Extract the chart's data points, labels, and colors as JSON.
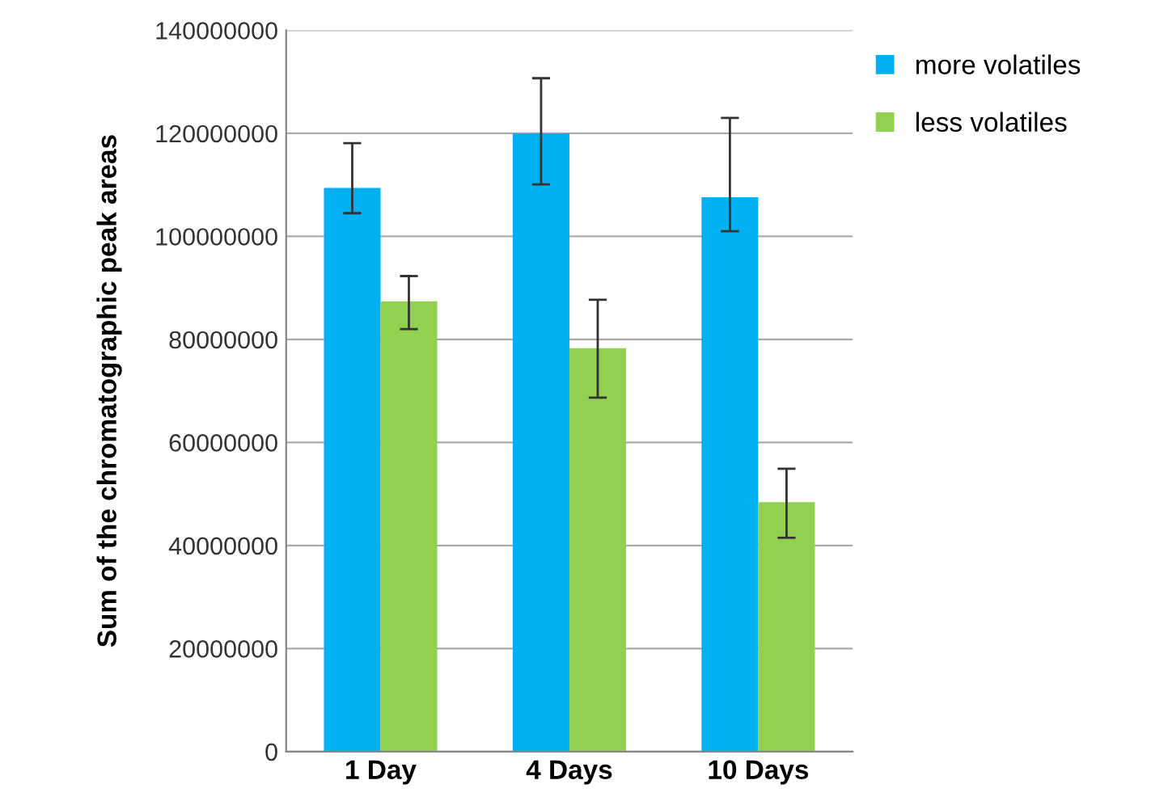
{
  "chart_data": {
    "type": "bar",
    "ylabel": "Sum of the chromatographic peak areas",
    "categories": [
      "1 Day",
      "4 Days",
      "10 Days"
    ],
    "series": [
      {
        "name": "more volatiles",
        "color": "#00b0f0",
        "values": [
          109400000,
          120000000,
          107600000
        ],
        "errors": [
          [
            104500000,
            118100000
          ],
          [
            110100000,
            130700000
          ],
          [
            101000000,
            123000000
          ]
        ]
      },
      {
        "name": "less volatiles",
        "color": "#92d050",
        "values": [
          87400000,
          78300000,
          48400000
        ],
        "errors": [
          [
            82000000,
            92300000
          ],
          [
            68700000,
            87700000
          ],
          [
            41500000,
            54900000
          ]
        ]
      }
    ],
    "ylim": [
      0,
      140000000
    ],
    "yticks": [
      0,
      20000000,
      40000000,
      60000000,
      80000000,
      100000000,
      120000000,
      140000000
    ],
    "grid": "y",
    "legend": "top right"
  }
}
